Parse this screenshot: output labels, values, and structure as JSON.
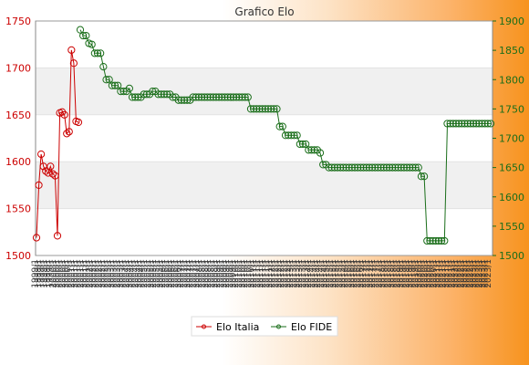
{
  "chart_data": {
    "type": "line",
    "title": "Grafico Elo",
    "xlabel": "",
    "ylabel": "",
    "x_tick_labels": [
      "1999/1",
      "2000/1",
      "2001/1",
      "2002/1",
      "2003/1",
      "2004/1",
      "2005/1",
      "2006/1",
      "2007/1",
      "2008/1",
      "2009/1",
      "2010/1",
      "2011/1",
      "2012/1",
      "2013/1",
      "2014/1",
      "2015/1",
      "2016/1",
      "2017/1",
      "2018/1",
      "2019/1",
      "2020/1",
      "2021/1",
      "2022/1",
      "2023/1"
    ],
    "y_left": {
      "ylim": [
        1500,
        1750
      ],
      "ticks": [
        1500,
        1550,
        1600,
        1650,
        1700,
        1750
      ],
      "color": "#cc0000"
    },
    "y_right": {
      "ylim": [
        1500,
        1900
      ],
      "ticks": [
        1500,
        1550,
        1600,
        1650,
        1700,
        1750,
        1800,
        1850,
        1900
      ],
      "color": "#1a6e1a"
    },
    "grid": true,
    "legend": "bottom-center",
    "series": [
      {
        "name": "Elo Italia",
        "axis": "left",
        "color": "#cc0000",
        "values": [
          1519,
          1575,
          1608,
          1595,
          1590,
          1588,
          1595,
          1587,
          1585,
          1521,
          1652,
          1653,
          1650,
          1630,
          1632,
          1719,
          1705,
          1643,
          1642
        ]
      },
      {
        "name": "Elo FIDE",
        "axis": "right",
        "color": "#1a6e1a",
        "values": [
          1885,
          1875,
          1875,
          1862,
          1860,
          1845,
          1845,
          1845,
          1822,
          1800,
          1800,
          1790,
          1790,
          1790,
          1780,
          1780,
          1780,
          1785,
          1770,
          1770,
          1770,
          1770,
          1775,
          1775,
          1775,
          1780,
          1780,
          1775,
          1775,
          1775,
          1775,
          1775,
          1770,
          1770,
          1765,
          1765,
          1765,
          1765,
          1765,
          1770,
          1770,
          1770,
          1770,
          1770,
          1770,
          1770,
          1770,
          1770,
          1770,
          1770,
          1770,
          1770,
          1770,
          1770,
          1770,
          1770,
          1770,
          1770,
          1770,
          1750,
          1750,
          1750,
          1750,
          1750,
          1750,
          1750,
          1750,
          1750,
          1750,
          1720,
          1720,
          1705,
          1705,
          1705,
          1705,
          1705,
          1690,
          1690,
          1690,
          1680,
          1680,
          1680,
          1680,
          1675,
          1655,
          1655,
          1650,
          1650,
          1650,
          1650,
          1650,
          1650,
          1650,
          1650,
          1650,
          1650,
          1650,
          1650,
          1650,
          1650,
          1650,
          1650,
          1650,
          1650,
          1650,
          1650,
          1650,
          1650,
          1650,
          1650,
          1650,
          1650,
          1650,
          1650,
          1650,
          1650,
          1650,
          1650,
          1635,
          1635,
          1525,
          1525,
          1525,
          1525,
          1525,
          1525,
          1525,
          1725,
          1725,
          1725,
          1725,
          1725,
          1725,
          1725,
          1725,
          1725,
          1725,
          1725,
          1725,
          1725,
          1725,
          1725,
          1725
        ]
      }
    ]
  }
}
